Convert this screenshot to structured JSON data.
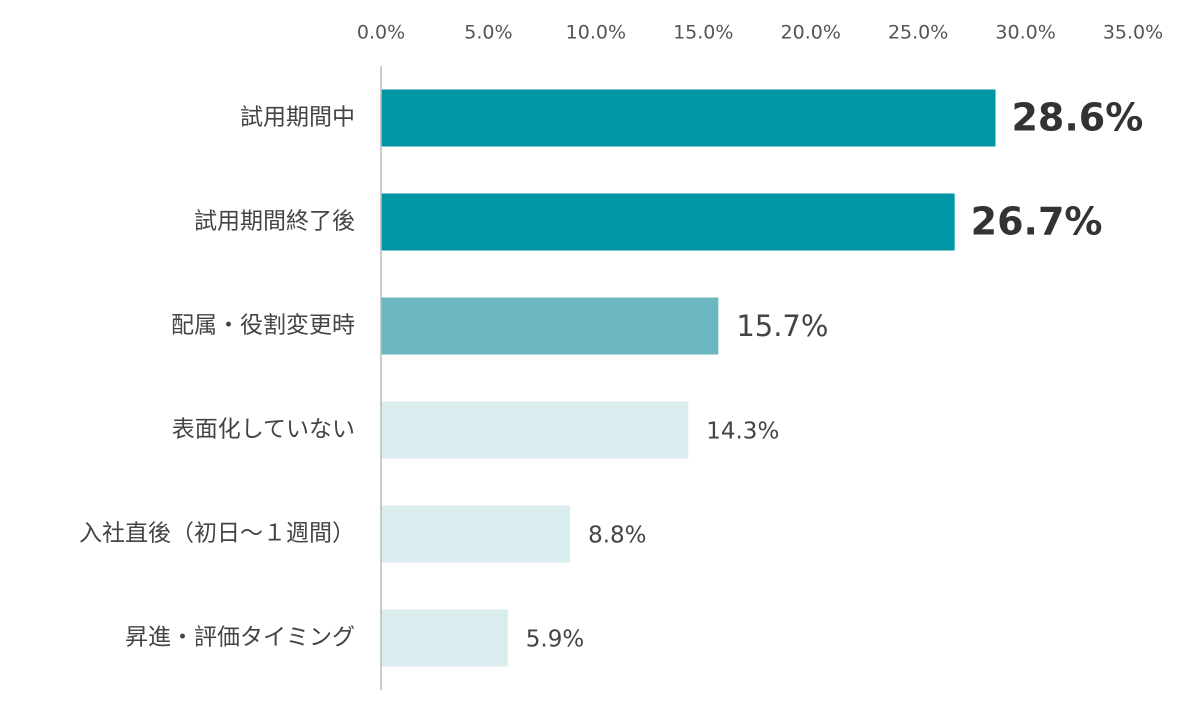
{
  "chart_data": {
    "type": "bar",
    "orientation": "horizontal",
    "categories": [
      "試用期間中",
      "試用期間終了後",
      "配属・役割変更時",
      "表面化していない",
      "入社直後（初日〜１週間）",
      "昇進・評価タイミング"
    ],
    "values": [
      28.6,
      26.7,
      15.7,
      14.3,
      8.8,
      5.9
    ],
    "value_labels": [
      "28.6%",
      "26.7%",
      "15.7%",
      "14.3%",
      "8.8%",
      "5.9%"
    ],
    "colors": [
      "#0096a6",
      "#0096a6",
      "#6bb7c0",
      "#d9ecee",
      "#d9ecee",
      "#d9ecee"
    ],
    "xlim": [
      0,
      35
    ],
    "xticks": [
      {
        "value": 0,
        "label": "0.0%"
      },
      {
        "value": 5,
        "label": "5.0%"
      },
      {
        "value": 10,
        "label": "10.0%"
      },
      {
        "value": 15,
        "label": "15.0%"
      },
      {
        "value": 20,
        "label": "20.0%"
      },
      {
        "value": 25,
        "label": "25.0%"
      },
      {
        "value": 30,
        "label": "30.0%"
      },
      {
        "value": 35,
        "label": "35.0%"
      }
    ],
    "grid": false
  }
}
